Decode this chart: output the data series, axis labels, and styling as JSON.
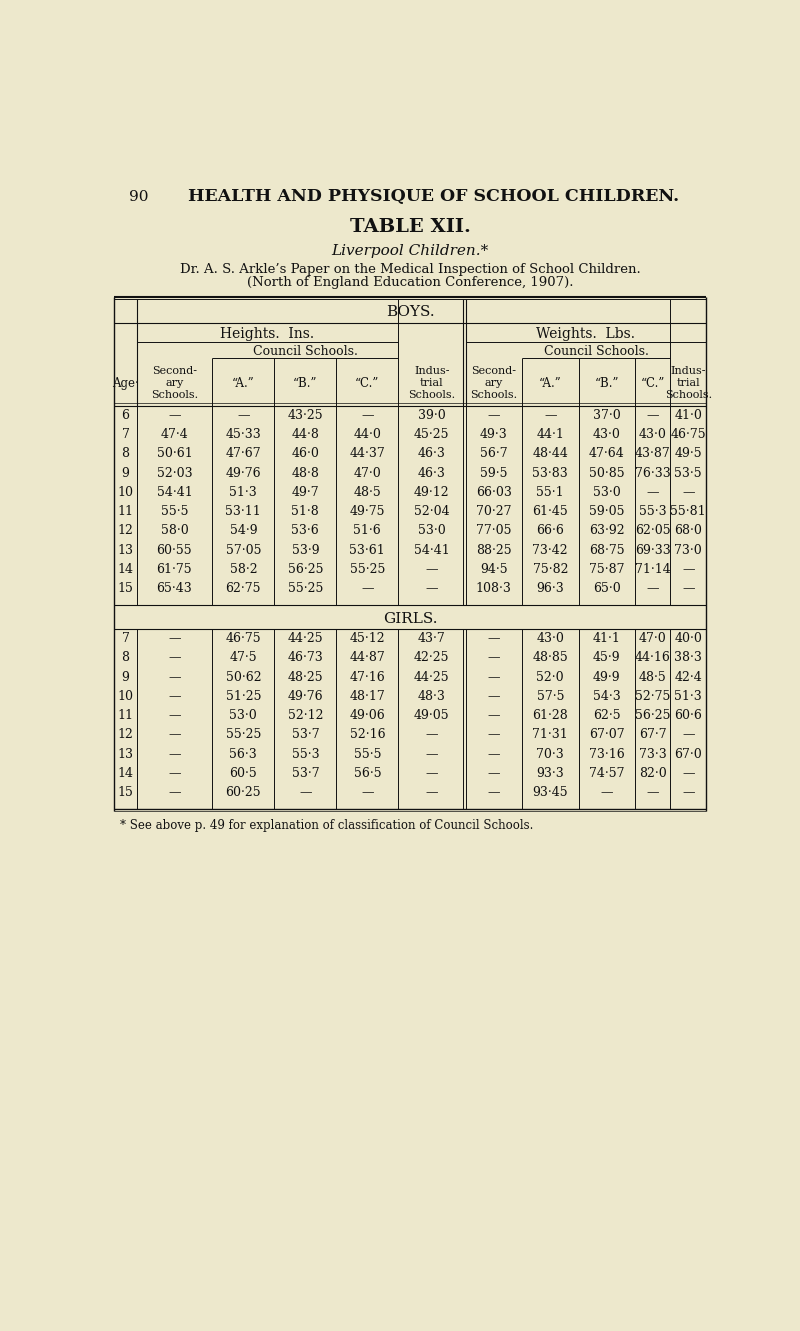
{
  "page_header_num": "90",
  "page_header_text": "HEALTH AND PHYSIQUE OF SCHOOL CHILDREN.",
  "table_title": "TABLE XII.",
  "subtitle1": "Liverpool Children.*",
  "subtitle2": "Dr. A. S. Arkle’s Paper on the Medical Inspection of School Children.",
  "subtitle3": "(North of England Education Conference, 1907).",
  "bg_color": "#ede8cc",
  "boys_header": "BOYS.",
  "girls_header": "GIRLS.",
  "heights_header": "Heights.  Ins.",
  "weights_header": "Weights.  Lbs.",
  "council_schools": "Council Schools.",
  "footnote": "* See above p. 49 for explanation of classification of Council Schools.",
  "col_bounds": [
    18,
    48,
    145,
    225,
    305,
    385,
    472,
    545,
    618,
    690,
    736,
    782
  ],
  "boys_data": [
    [
      "6",
      "",
      "",
      "43·25",
      "",
      "39·0",
      "",
      "",
      "37·0",
      "",
      "41·0"
    ],
    [
      "7",
      "47·4",
      "45·33",
      "44·8",
      "44·0",
      "45·25",
      "49·3",
      "44·1",
      "43·0",
      "43·0",
      "46·75"
    ],
    [
      "8",
      "50·61",
      "47·67",
      "46·0",
      "44·37",
      "46·3",
      "56·7",
      "48·44",
      "47·64",
      "43·87",
      "49·5"
    ],
    [
      "9",
      "52·03",
      "49·76",
      "48·8",
      "47·0",
      "46·3",
      "59·5",
      "53·83",
      "50·85",
      "76·33",
      "53·5"
    ],
    [
      "10",
      "54·41",
      "51·3",
      "49·7",
      "48·5",
      "49·12",
      "66·03",
      "55·1",
      "53·0",
      "",
      ""
    ],
    [
      "11",
      "55·5",
      "53·11",
      "51·8",
      "49·75",
      "52·04",
      "70·27",
      "61·45",
      "59·05",
      "55·3",
      "55·81"
    ],
    [
      "12",
      "58·0",
      "54·9",
      "53·6",
      "51·6",
      "53·0",
      "77·05",
      "66·6",
      "63·92",
      "62·05",
      "68·0"
    ],
    [
      "13",
      "60·55",
      "57·05",
      "53·9",
      "53·61",
      "54·41",
      "88·25",
      "73·42",
      "68·75",
      "69·33",
      "73·0"
    ],
    [
      "14",
      "61·75",
      "58·2",
      "56·25",
      "55·25",
      "",
      "94·5",
      "75·82",
      "75·87",
      "71·14",
      ""
    ],
    [
      "15",
      "65·43",
      "62·75",
      "55·25",
      "",
      "",
      "108·3",
      "96·3",
      "65·0",
      "",
      ""
    ]
  ],
  "girls_data": [
    [
      "7",
      "",
      "46·75",
      "44·25",
      "45·12",
      "43·7",
      "",
      "43·0",
      "41·1",
      "47·0",
      "40·0"
    ],
    [
      "8",
      "",
      "47·5",
      "46·73",
      "44·87",
      "42·25",
      "",
      "48·85",
      "45·9",
      "44·16",
      "38·3"
    ],
    [
      "9",
      "",
      "50·62",
      "48·25",
      "47·16",
      "44·25",
      "",
      "52·0",
      "49·9",
      "48·5",
      "42·4"
    ],
    [
      "10",
      "",
      "51·25",
      "49·76",
      "48·17",
      "48·3",
      "",
      "57·5",
      "54·3",
      "52·75",
      "51·3"
    ],
    [
      "11",
      "",
      "53·0",
      "52·12",
      "49·06",
      "49·05",
      "",
      "61·28",
      "62·5",
      "56·25",
      "60·6"
    ],
    [
      "12",
      "",
      "55·25",
      "53·7",
      "52·16",
      "",
      "",
      "71·31",
      "67·07",
      "67·7",
      ""
    ],
    [
      "13",
      "",
      "56·3",
      "55·3",
      "55·5",
      "",
      "",
      "70·3",
      "73·16",
      "73·3",
      "67·0"
    ],
    [
      "14",
      "",
      "60·5",
      "53·7",
      "56·5",
      "",
      "",
      "93·3",
      "74·57",
      "82·0",
      ""
    ],
    [
      "15",
      "",
      "60·25",
      "",
      "",
      "",
      "",
      "93·45",
      "",
      "",
      ""
    ]
  ]
}
